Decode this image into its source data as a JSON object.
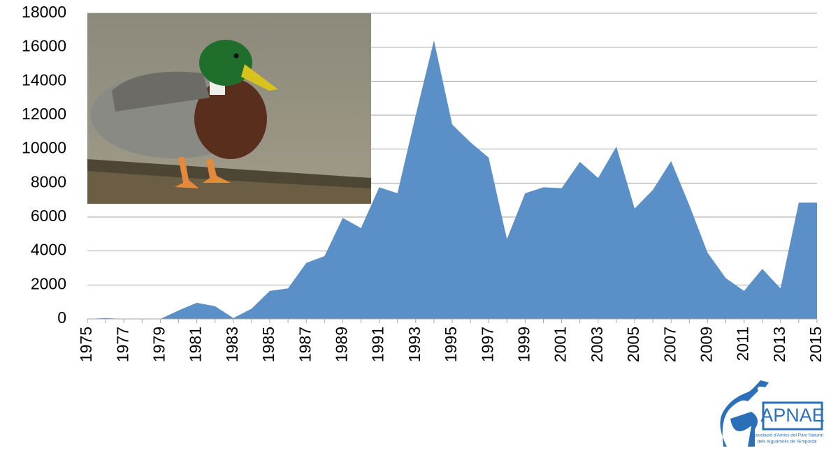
{
  "chart_data": {
    "type": "area",
    "categories": [
      "1975",
      null,
      "1977",
      null,
      "1979",
      null,
      "1981",
      null,
      "1983",
      null,
      "1985",
      null,
      "1987",
      null,
      "1989",
      null,
      "1991",
      null,
      "1993",
      null,
      "1995",
      null,
      "1997",
      null,
      "1999",
      null,
      "2001",
      null,
      "2003",
      null,
      "2005",
      null,
      "2007",
      null,
      "2009",
      null,
      "2011",
      null,
      "2013",
      null,
      "2015"
    ],
    "values": [
      0,
      50,
      0,
      0,
      0,
      500,
      950,
      750,
      50,
      600,
      1650,
      1800,
      3300,
      3700,
      5950,
      5350,
      7750,
      7400,
      12000,
      16400,
      11450,
      10400,
      9500,
      4700,
      7400,
      7750,
      7700,
      9250,
      8300,
      10150,
      6500,
      7600,
      9300,
      6700,
      3900,
      2400,
      1650,
      2950,
      1800,
      6850,
      6850
    ],
    "color": "#5b8fc7",
    "ylim": [
      0,
      18000
    ],
    "yticks": [
      0,
      2000,
      4000,
      6000,
      8000,
      10000,
      12000,
      14000,
      16000,
      18000
    ],
    "grid": true
  },
  "logo": {
    "name": "APNAE",
    "subtitle": [
      "Associació d'Amics del Parc Natural",
      "dels Aiguamolls de l'Empordà"
    ]
  }
}
